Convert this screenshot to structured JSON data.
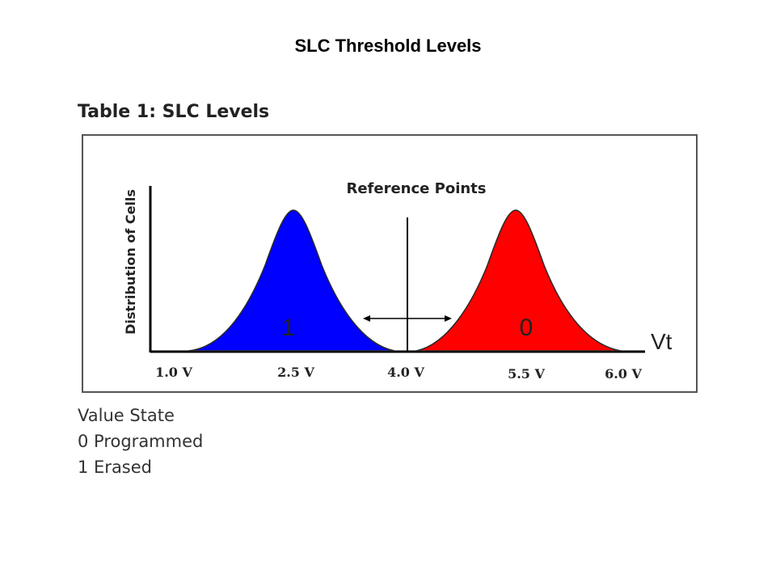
{
  "slide": {
    "title": "SLC Threshold Levels"
  },
  "figure": {
    "caption": "Table 1: SLC Levels",
    "y_axis_label": "Distribution of Cells",
    "x_axis_label": "Vt",
    "reference_label": "Reference Points",
    "x_ticks": [
      "1.0 V",
      "2.5 V",
      "4.0 V",
      "5.5 V",
      "6.0 V"
    ],
    "distributions": [
      {
        "state_digit": "1",
        "peak_voltage": "2.5 V",
        "color": "#0000ff"
      },
      {
        "state_digit": "0",
        "peak_voltage": "5.5 V",
        "color": "#ff0000"
      }
    ]
  },
  "legend": {
    "header": "Value State",
    "rows": [
      "0 Programmed",
      "1 Erased"
    ]
  }
}
